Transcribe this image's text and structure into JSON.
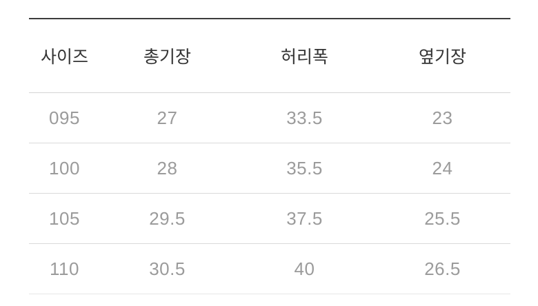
{
  "page": {
    "background_color": "#ffffff",
    "accent_border_color": "#3b3b3b",
    "divider_color": "#d9d9d9",
    "header_text_color": "#333333",
    "data_text_color": "#9b9b9b"
  },
  "size_table": {
    "headers": {
      "size": "사이즈",
      "total_length": "총기장",
      "waist_width": "허리폭",
      "side_length": "옆기장"
    },
    "rows": [
      [
        "095",
        "27",
        "33.5",
        "23"
      ],
      [
        "100",
        "28",
        "35.5",
        "24"
      ],
      [
        "105",
        "29.5",
        "37.5",
        "25.5"
      ],
      [
        "110",
        "30.5",
        "40",
        "26.5"
      ]
    ]
  },
  "chart_data": {
    "type": "table",
    "title": "",
    "columns": [
      "사이즈",
      "총기장",
      "허리폭",
      "옆기장"
    ],
    "rows": [
      [
        "095",
        "27",
        "33.5",
        "23"
      ],
      [
        "100",
        "28",
        "35.5",
        "24"
      ],
      [
        "105",
        "29.5",
        "37.5",
        "25.5"
      ],
      [
        "110",
        "30.5",
        "40",
        "26.5"
      ]
    ]
  }
}
